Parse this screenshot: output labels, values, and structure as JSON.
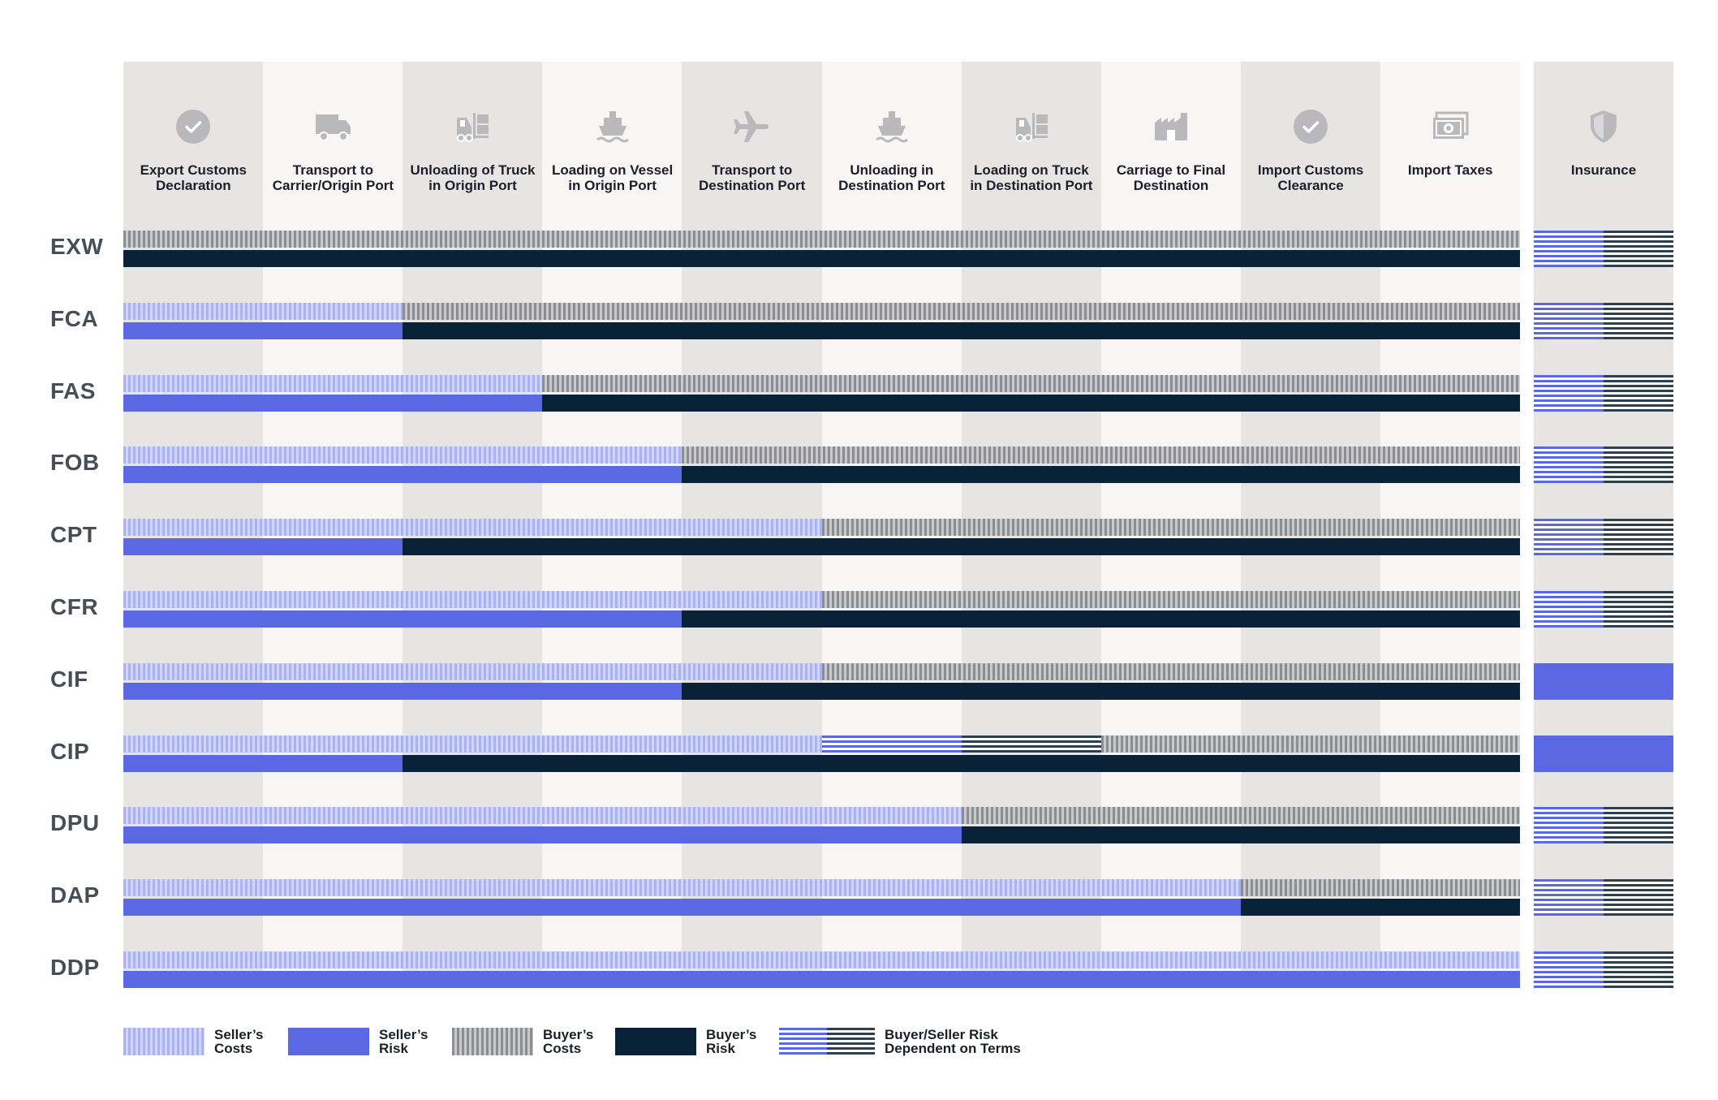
{
  "columns": [
    {
      "label": "Export Customs Declaration",
      "icon": "check-circle-icon"
    },
    {
      "label": "Transport to Carrier/Origin Port",
      "icon": "truck-icon"
    },
    {
      "label": "Unloading of Truck in Origin Port",
      "icon": "forklift-icon"
    },
    {
      "label": "Loading on Vessel in Origin Port",
      "icon": "ship-icon"
    },
    {
      "label": "Transport to Destination Port",
      "icon": "airplane-icon"
    },
    {
      "label": "Unloading in Destination Port",
      "icon": "ship-icon"
    },
    {
      "label": "Loading on Truck in Destination Port",
      "icon": "forklift-icon"
    },
    {
      "label": "Carriage to Final Destination",
      "icon": "warehouse-icon"
    },
    {
      "label": "Import Customs Clearance",
      "icon": "check-circle-icon"
    },
    {
      "label": "Import Taxes",
      "icon": "banknote-icon"
    }
  ],
  "insurance": {
    "label": "Insurance",
    "icon": "shield-icon"
  },
  "rows": [
    {
      "term": "EXW",
      "seller_costs_steps": 0,
      "seller_risk_steps": 0,
      "depend_costs_steps": 0,
      "insurance": "dependent"
    },
    {
      "term": "FCA",
      "seller_costs_steps": 2,
      "seller_risk_steps": 2,
      "depend_costs_steps": 0,
      "insurance": "dependent"
    },
    {
      "term": "FAS",
      "seller_costs_steps": 3,
      "seller_risk_steps": 3,
      "depend_costs_steps": 0,
      "insurance": "dependent"
    },
    {
      "term": "FOB",
      "seller_costs_steps": 4,
      "seller_risk_steps": 4,
      "depend_costs_steps": 0,
      "insurance": "dependent"
    },
    {
      "term": "CPT",
      "seller_costs_steps": 5,
      "seller_risk_steps": 2,
      "depend_costs_steps": 0,
      "insurance": "dependent"
    },
    {
      "term": "CFR",
      "seller_costs_steps": 5,
      "seller_risk_steps": 4,
      "depend_costs_steps": 0,
      "insurance": "dependent"
    },
    {
      "term": "CIF",
      "seller_costs_steps": 5,
      "seller_risk_steps": 4,
      "depend_costs_steps": 0,
      "insurance": "seller"
    },
    {
      "term": "CIP",
      "seller_costs_steps": 5,
      "seller_risk_steps": 2,
      "depend_costs_steps": 2,
      "insurance": "seller"
    },
    {
      "term": "DPU",
      "seller_costs_steps": 6,
      "seller_risk_steps": 6,
      "depend_costs_steps": 0,
      "insurance": "dependent"
    },
    {
      "term": "DAP",
      "seller_costs_steps": 8,
      "seller_risk_steps": 8,
      "depend_costs_steps": 0,
      "insurance": "dependent"
    },
    {
      "term": "DDP",
      "seller_costs_steps": 10,
      "seller_risk_steps": 10,
      "depend_costs_steps": 0,
      "insurance": "dependent"
    }
  ],
  "legend": [
    {
      "key": "seller-costs",
      "label": "Seller’s\nCosts"
    },
    {
      "key": "seller-risk",
      "label": "Seller’s\nRisk"
    },
    {
      "key": "buyer-costs",
      "label": "Buyer’s\nCosts"
    },
    {
      "key": "buyer-risk",
      "label": "Buyer’s\nRisk"
    },
    {
      "key": "dependent",
      "label": "Buyer/Seller Risk\nDependent on Terms"
    }
  ],
  "colors": {
    "seller_risk": "#5a69e3",
    "buyer_risk": "#0a2238",
    "seller_costs": "#aab3f0",
    "buyer_costs": "#8b8d92"
  }
}
